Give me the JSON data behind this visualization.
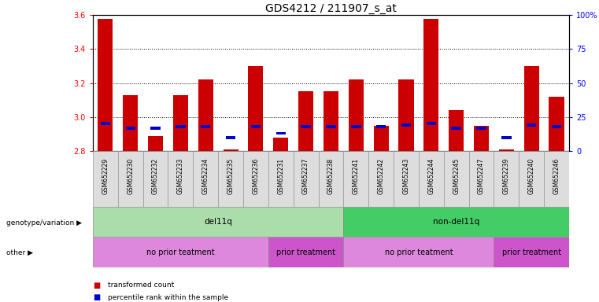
{
  "title": "GDS4212 / 211907_s_at",
  "samples": [
    "GSM652229",
    "GSM652230",
    "GSM652232",
    "GSM652233",
    "GSM652234",
    "GSM652235",
    "GSM652236",
    "GSM652231",
    "GSM652237",
    "GSM652238",
    "GSM652241",
    "GSM652242",
    "GSM652243",
    "GSM652244",
    "GSM652245",
    "GSM652247",
    "GSM652239",
    "GSM652240",
    "GSM652246"
  ],
  "transformed_count": [
    3.58,
    3.13,
    2.89,
    3.13,
    3.22,
    2.81,
    3.3,
    2.88,
    3.15,
    3.15,
    3.22,
    2.95,
    3.22,
    3.58,
    3.04,
    2.95,
    2.81,
    3.3,
    3.12
  ],
  "percentile_rank": [
    20,
    17,
    17,
    18,
    18,
    10,
    18,
    13,
    18,
    18,
    18,
    18,
    19,
    20,
    17,
    17,
    10,
    19,
    18
  ],
  "bar_base": 2.8,
  "ylim_left": [
    2.8,
    3.6
  ],
  "ylim_right": [
    0,
    100
  ],
  "yticks_left": [
    2.8,
    3.0,
    3.2,
    3.4,
    3.6
  ],
  "yticks_right": [
    0,
    25,
    50,
    75,
    100
  ],
  "red_color": "#cc0000",
  "blue_color": "#0000cc",
  "bar_width": 0.6,
  "genotype_groups": [
    {
      "label": "del11q",
      "start": 0,
      "end": 10,
      "color": "#aaddaa"
    },
    {
      "label": "non-del11q",
      "start": 10,
      "end": 19,
      "color": "#44cc66"
    }
  ],
  "other_groups": [
    {
      "label": "no prior teatment",
      "start": 0,
      "end": 7,
      "color": "#dd88dd"
    },
    {
      "label": "prior treatment",
      "start": 7,
      "end": 10,
      "color": "#cc55cc"
    },
    {
      "label": "no prior teatment",
      "start": 10,
      "end": 16,
      "color": "#dd88dd"
    },
    {
      "label": "prior treatment",
      "start": 16,
      "end": 19,
      "color": "#cc55cc"
    }
  ],
  "legend_red_label": "transformed count",
  "legend_blue_label": "percentile rank within the sample",
  "genotype_label": "genotype/variation",
  "other_label": "other"
}
